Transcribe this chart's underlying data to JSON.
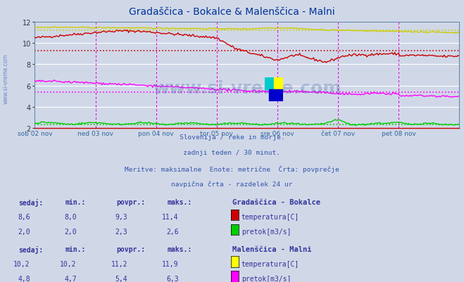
{
  "title": "Gradaščica - Bokalce & Malenščica - Malni",
  "title_color": "#003399",
  "bg_color": "#d0d8e8",
  "plot_bg_color": "#d0d8e8",
  "grid_color": "#ffffff",
  "xlabel_days": [
    "sob 02 nov",
    "ned 03 nov",
    "pon 04 nov",
    "tor 05 nov",
    "sre 06 nov",
    "čet 07 nov",
    "pet 08 nov"
  ],
  "ylim": [
    2.0,
    12.0
  ],
  "yticks": [
    2,
    4,
    6,
    8,
    10,
    12
  ],
  "n_points": 336,
  "subtitle_lines": [
    "Slovenija / reke in morje.",
    "zadnji teden / 30 minut.",
    "Meritve: maksimalne  Enote: metrične  Črta: povprečje",
    "navpična črta - razdelek 24 ur"
  ],
  "legend_section1_title": "Gradaščica - Bokalce",
  "legend_section1": [
    {
      "label": "temperatura[C]",
      "color": "#cc0000"
    },
    {
      "label": "pretok[m3/s]",
      "color": "#00cc00"
    }
  ],
  "legend_section1_stats": [
    {
      "sedaj": "8,6",
      "min": "8,0",
      "povpr": "9,3",
      "maks": "11,4"
    },
    {
      "sedaj": "2,0",
      "min": "2,0",
      "povpr": "2,3",
      "maks": "2,6"
    }
  ],
  "legend_section2_title": "Malenščica - Malni",
  "legend_section2": [
    {
      "label": "temperatura[C]",
      "color": "#ffff00"
    },
    {
      "label": "pretok[m3/s]",
      "color": "#ff00ff"
    }
  ],
  "legend_section2_stats": [
    {
      "sedaj": "10,2",
      "min": "10,2",
      "povpr": "11,2",
      "maks": "11,9"
    },
    {
      "sedaj": "4,8",
      "min": "4,7",
      "povpr": "5,4",
      "maks": "6,3"
    }
  ],
  "divider_lines_color": "#cc00cc",
  "watermark_color": "#4466aa",
  "avg_lines": {
    "temp_bokalce": 9.3,
    "pretok_bokalce": 2.3,
    "temp_malni": 11.2,
    "pretok_malni": 5.4
  }
}
